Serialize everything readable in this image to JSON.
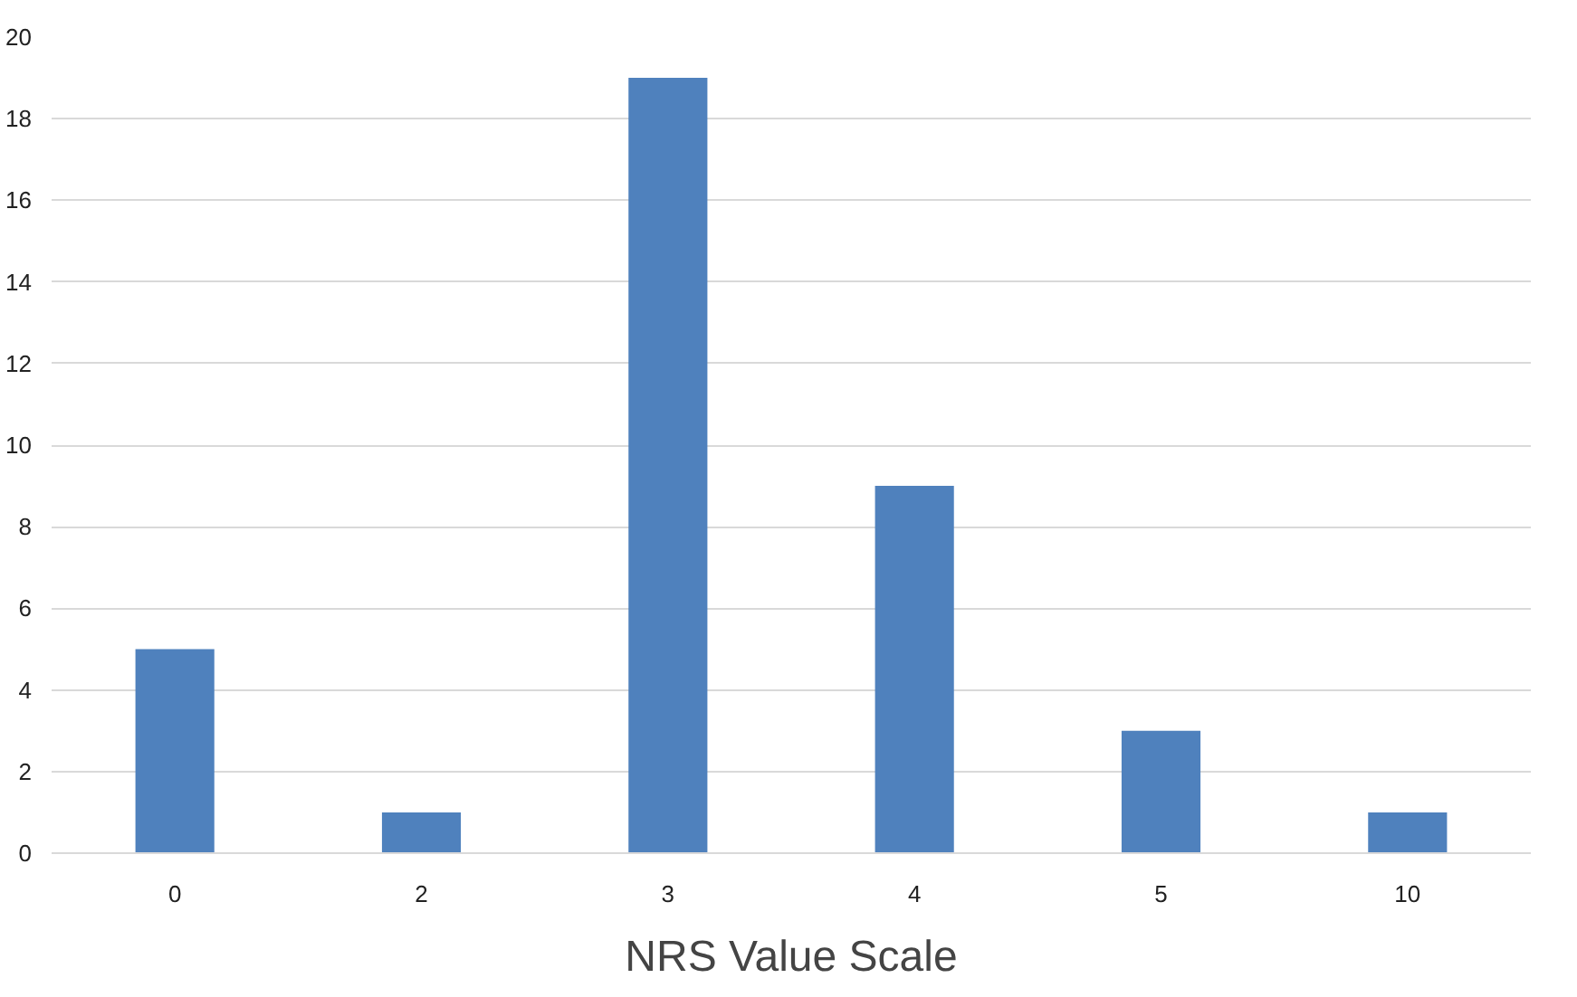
{
  "chart_data": {
    "type": "bar",
    "xlabel": "NRS Value Scale",
    "categories": [
      "0",
      "2",
      "3",
      "4",
      "5",
      "10"
    ],
    "values": [
      5,
      1,
      19,
      9,
      3,
      1
    ],
    "color": "#4f81bd",
    "ylim": [
      0,
      20
    ],
    "yticks": [
      0,
      2,
      4,
      6,
      8,
      10,
      12,
      14,
      16,
      18,
      20
    ],
    "grid": "y"
  }
}
